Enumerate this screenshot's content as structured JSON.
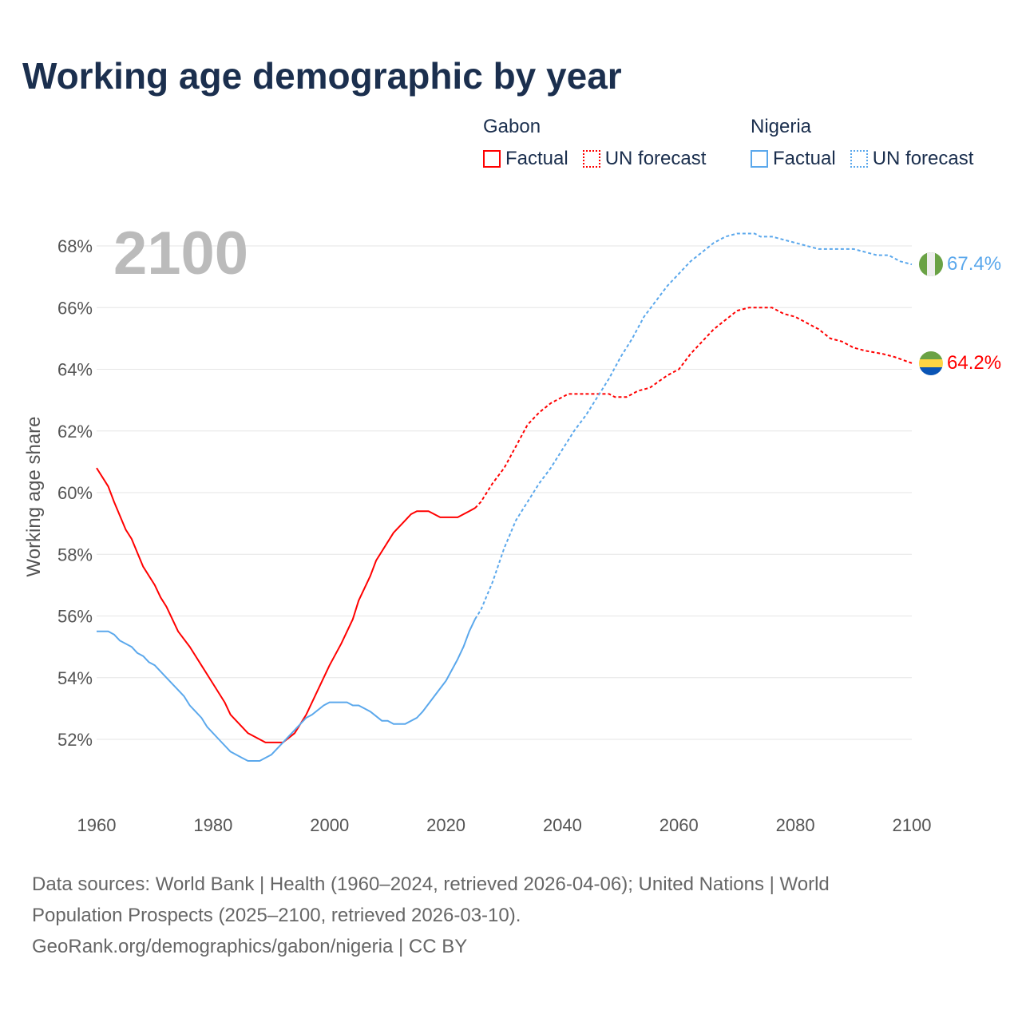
{
  "title": "Working age demographic by year",
  "legend": {
    "groups": [
      {
        "name": "Gabon",
        "color": "#ff0000",
        "factual_label": "Factual",
        "forecast_label": "UN forecast"
      },
      {
        "name": "Nigeria",
        "color": "#5ba8ec",
        "factual_label": "Factual",
        "forecast_label": "UN forecast"
      }
    ]
  },
  "year_label": "2100",
  "end_labels": {
    "gabon": "64.2%",
    "nigeria": "67.4%"
  },
  "footer": {
    "line1": "Data sources: World Bank | Health (1960–2024, retrieved 2026-04-06); United Nations | World",
    "line2": "Population Prospects (2025–2100, retrieved 2026-03-10).",
    "line3": "GeoRank.org/demographics/gabon/nigeria | CC BY"
  },
  "chart_data": {
    "type": "line",
    "title": "Working age demographic by year",
    "xlabel": "",
    "ylabel": "Working age share",
    "xlim": [
      1960,
      2100
    ],
    "ylim": [
      50,
      69
    ],
    "x_ticks": [
      "1960",
      "1980",
      "2000",
      "2020",
      "2040",
      "2060",
      "2080",
      "2100"
    ],
    "y_ticks": [
      "52%",
      "54%",
      "56%",
      "58%",
      "60%",
      "62%",
      "64%",
      "66%",
      "68%"
    ],
    "grid": true,
    "series": [
      {
        "name": "Gabon Factual",
        "color": "#ff0000",
        "dashed": false,
        "x": [
          1960,
          1962,
          1963,
          1965,
          1966,
          1968,
          1970,
          1971,
          1972,
          1974,
          1976,
          1978,
          1980,
          1982,
          1983,
          1986,
          1988,
          1989,
          1992,
          1994,
          1996,
          1998,
          2000,
          2002,
          2004,
          2005,
          2007,
          2008,
          2011,
          2013,
          2014,
          2015,
          2017,
          2019,
          2022,
          2024,
          2025
        ],
        "y": [
          60.8,
          60.2,
          59.7,
          58.8,
          58.5,
          57.6,
          57.0,
          56.6,
          56.3,
          55.5,
          55.0,
          54.4,
          53.8,
          53.2,
          52.8,
          52.2,
          52.0,
          51.9,
          51.9,
          52.2,
          52.8,
          53.6,
          54.4,
          55.1,
          55.9,
          56.5,
          57.3,
          57.8,
          58.7,
          59.1,
          59.3,
          59.4,
          59.4,
          59.2,
          59.2,
          59.4,
          59.5
        ]
      },
      {
        "name": "Gabon UN forecast",
        "color": "#ff0000",
        "dashed": true,
        "x": [
          2025,
          2026,
          2028,
          2030,
          2032,
          2034,
          2036,
          2038,
          2040,
          2041,
          2048,
          2049,
          2051,
          2053,
          2055,
          2058,
          2060,
          2062,
          2064,
          2066,
          2068,
          2070,
          2072,
          2076,
          2078,
          2080,
          2082,
          2084,
          2086,
          2088,
          2090,
          2092,
          2095,
          2097,
          2100
        ],
        "y": [
          59.5,
          59.7,
          60.3,
          60.8,
          61.5,
          62.2,
          62.6,
          62.9,
          63.1,
          63.2,
          63.2,
          63.1,
          63.1,
          63.3,
          63.4,
          63.8,
          64.0,
          64.5,
          64.9,
          65.3,
          65.6,
          65.9,
          66.0,
          66.0,
          65.8,
          65.7,
          65.5,
          65.3,
          65.0,
          64.9,
          64.7,
          64.6,
          64.5,
          64.4,
          64.2
        ]
      },
      {
        "name": "Nigeria Factual",
        "color": "#5ba8ec",
        "dashed": false,
        "x": [
          1960,
          1962,
          1963,
          1964,
          1966,
          1967,
          1968,
          1969,
          1970,
          1972,
          1974,
          1975,
          1976,
          1978,
          1979,
          1981,
          1983,
          1985,
          1986,
          1988,
          1990,
          1992,
          1994,
          1996,
          1997,
          1999,
          2000,
          2003,
          2004,
          2005,
          2007,
          2009,
          2010,
          2011,
          2013,
          2015,
          2016,
          2018,
          2020,
          2022,
          2023,
          2024,
          2025
        ],
        "y": [
          55.5,
          55.5,
          55.4,
          55.2,
          55.0,
          54.8,
          54.7,
          54.5,
          54.4,
          54.0,
          53.6,
          53.4,
          53.1,
          52.7,
          52.4,
          52.0,
          51.6,
          51.4,
          51.3,
          51.3,
          51.5,
          51.9,
          52.3,
          52.7,
          52.8,
          53.1,
          53.2,
          53.2,
          53.1,
          53.1,
          52.9,
          52.6,
          52.6,
          52.5,
          52.5,
          52.7,
          52.9,
          53.4,
          53.9,
          54.6,
          55.0,
          55.5,
          55.9
        ]
      },
      {
        "name": "Nigeria UN forecast",
        "color": "#5ba8ec",
        "dashed": true,
        "x": [
          2025,
          2026,
          2028,
          2030,
          2032,
          2034,
          2036,
          2038,
          2040,
          2042,
          2044,
          2046,
          2048,
          2050,
          2052,
          2054,
          2056,
          2058,
          2060,
          2062,
          2064,
          2066,
          2068,
          2070,
          2073,
          2074,
          2076,
          2078,
          2080,
          2082,
          2084,
          2090,
          2092,
          2094,
          2096,
          2098,
          2100
        ],
        "y": [
          55.9,
          56.2,
          57.1,
          58.2,
          59.1,
          59.7,
          60.3,
          60.8,
          61.4,
          62.0,
          62.5,
          63.1,
          63.7,
          64.4,
          65.0,
          65.7,
          66.2,
          66.7,
          67.1,
          67.5,
          67.8,
          68.1,
          68.3,
          68.4,
          68.4,
          68.3,
          68.3,
          68.2,
          68.1,
          68.0,
          67.9,
          67.9,
          67.8,
          67.7,
          67.7,
          67.5,
          67.4
        ]
      }
    ]
  }
}
